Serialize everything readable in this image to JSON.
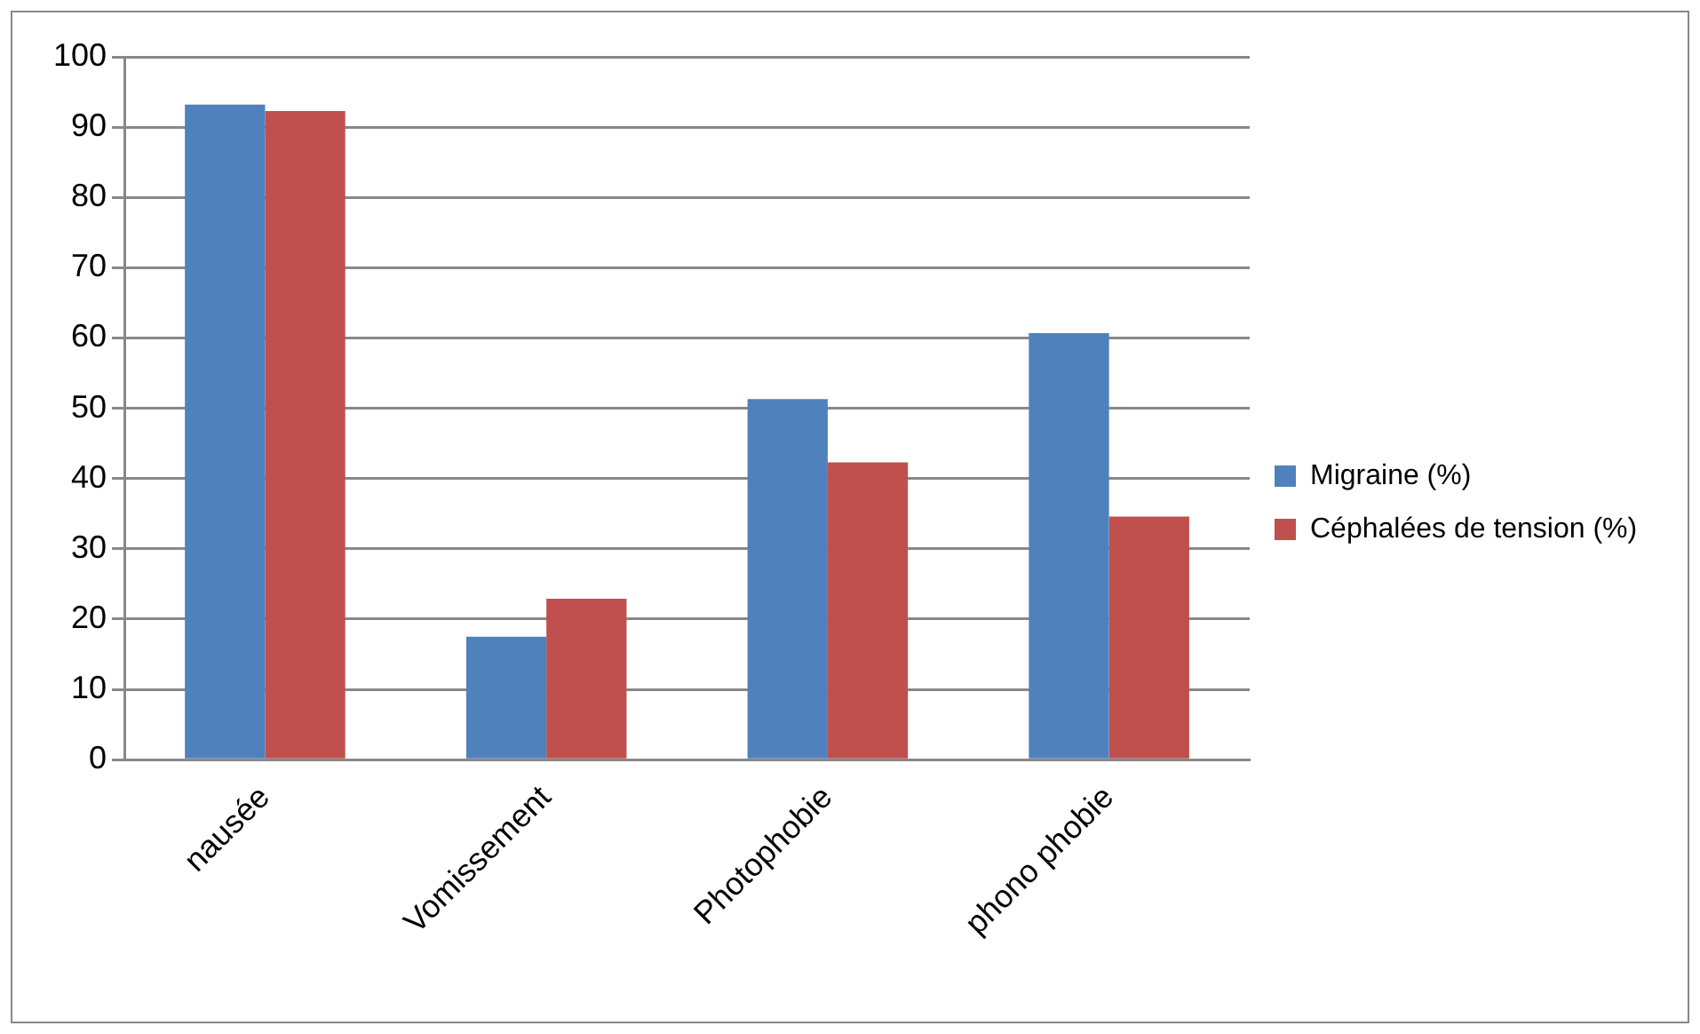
{
  "chart_data": {
    "type": "bar",
    "categories": [
      "nausée",
      "Vomissement",
      "Photophobie",
      "phono phobie"
    ],
    "series": [
      {
        "name": "Migraine (%)",
        "color": "#4f81bd",
        "values": [
          93.2,
          17.5,
          51.3,
          60.7
        ]
      },
      {
        "name": "Céphalées de tension (%)",
        "color": "#c0504d",
        "values": [
          92.3,
          22.9,
          42.3,
          34.6
        ]
      }
    ],
    "ylim": [
      0,
      100
    ],
    "yticks": [
      0,
      10,
      20,
      30,
      40,
      50,
      60,
      70,
      80,
      90,
      100
    ],
    "grid": "y",
    "legend": "right"
  }
}
